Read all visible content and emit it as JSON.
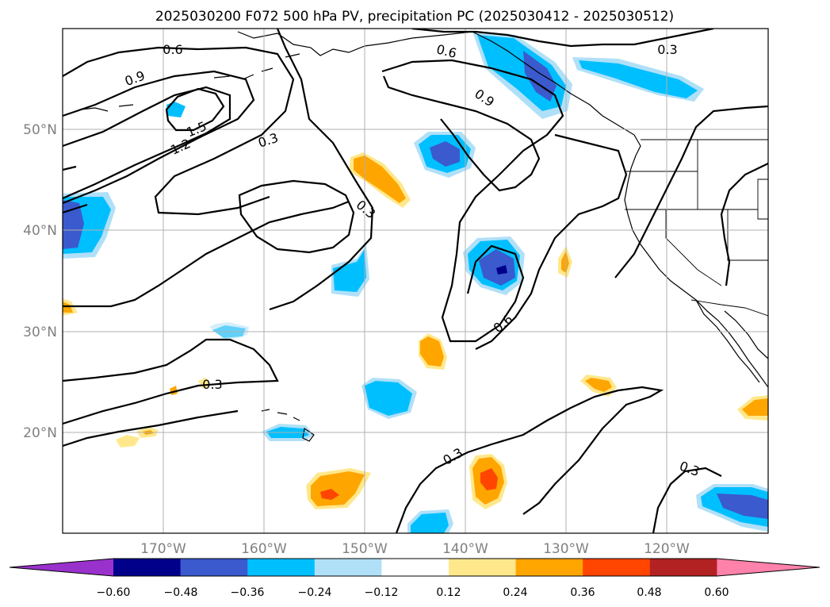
{
  "title": "2025030200 F072 500 hPa PV, precipitation PC (2025030412 - 2025030512)",
  "map": {
    "lon_ticks": [
      "170°W",
      "160°W",
      "150°W",
      "140°W",
      "130°W",
      "120°W"
    ],
    "lat_ticks": [
      "50°N",
      "40°N",
      "30°N",
      "20°N"
    ],
    "extent": {
      "lon": [
        -180,
        -110
      ],
      "lat": [
        10,
        60
      ]
    },
    "gridlines": true,
    "contour_labels": [
      "0.6",
      "0.9",
      "1.5",
      "1.2",
      "0.3",
      "0.3",
      "0.6",
      "0.9",
      "0.3",
      "0.3",
      "0.6",
      "0.3",
      "0.3"
    ]
  },
  "colorbar": {
    "ticks": [
      "−0.60",
      "−0.48",
      "−0.36",
      "−0.24",
      "−0.12",
      "0.12",
      "0.24",
      "0.36",
      "0.48",
      "0.60"
    ],
    "colors": [
      "#9932cc",
      "#00008b",
      "#3a5acd",
      "#00bfff",
      "#b0e0f8",
      "#ffffff",
      "#ffe88c",
      "#ffa500",
      "#ff4500",
      "#b22222",
      "#ff82ab"
    ],
    "extend": "both"
  }
}
